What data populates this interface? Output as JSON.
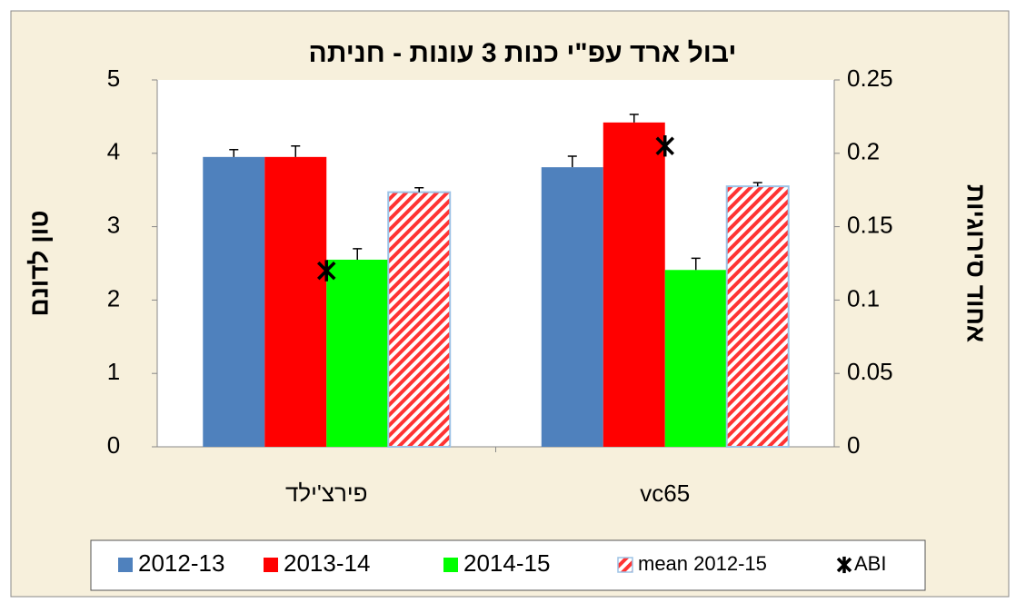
{
  "chart_data": {
    "type": "bar",
    "title": "יבול ארד עפ\"י כנות 3 עונות - חניתה",
    "y_label": "טון לדונם",
    "y2_label": "אחוד סירוגיות",
    "categories": [
      "פירצ'ילד",
      "vc65"
    ],
    "series": [
      {
        "name": "2012-13",
        "color": "#4f81bd",
        "values": [
          3.95,
          3.81
        ],
        "errors": [
          0.1,
          0.15
        ]
      },
      {
        "name": "2013-14",
        "color": "#ff0000",
        "values": [
          3.95,
          4.42
        ],
        "errors": [
          0.15,
          0.11
        ]
      },
      {
        "name": "2014-15",
        "color": "#00ff00",
        "values": [
          2.55,
          2.41
        ],
        "errors": [
          0.15,
          0.16
        ]
      },
      {
        "name": "mean 2012-15",
        "color": "#ff3333",
        "hatch": true,
        "values": [
          3.47,
          3.55
        ],
        "errors": [
          0.06,
          0.05
        ]
      },
      {
        "name": "ABI",
        "color": "#000000",
        "marker": "asterisk",
        "axis": "y2",
        "values": [
          0.12,
          0.205
        ]
      }
    ],
    "ylim": [
      0,
      5
    ],
    "yticks": [
      0,
      1,
      2,
      3,
      4,
      5
    ],
    "y2lim": [
      0,
      0.25
    ],
    "y2ticks": [
      0,
      0.05,
      0.1,
      0.15,
      0.2,
      0.25
    ],
    "grid": false,
    "legend": "bottom"
  }
}
